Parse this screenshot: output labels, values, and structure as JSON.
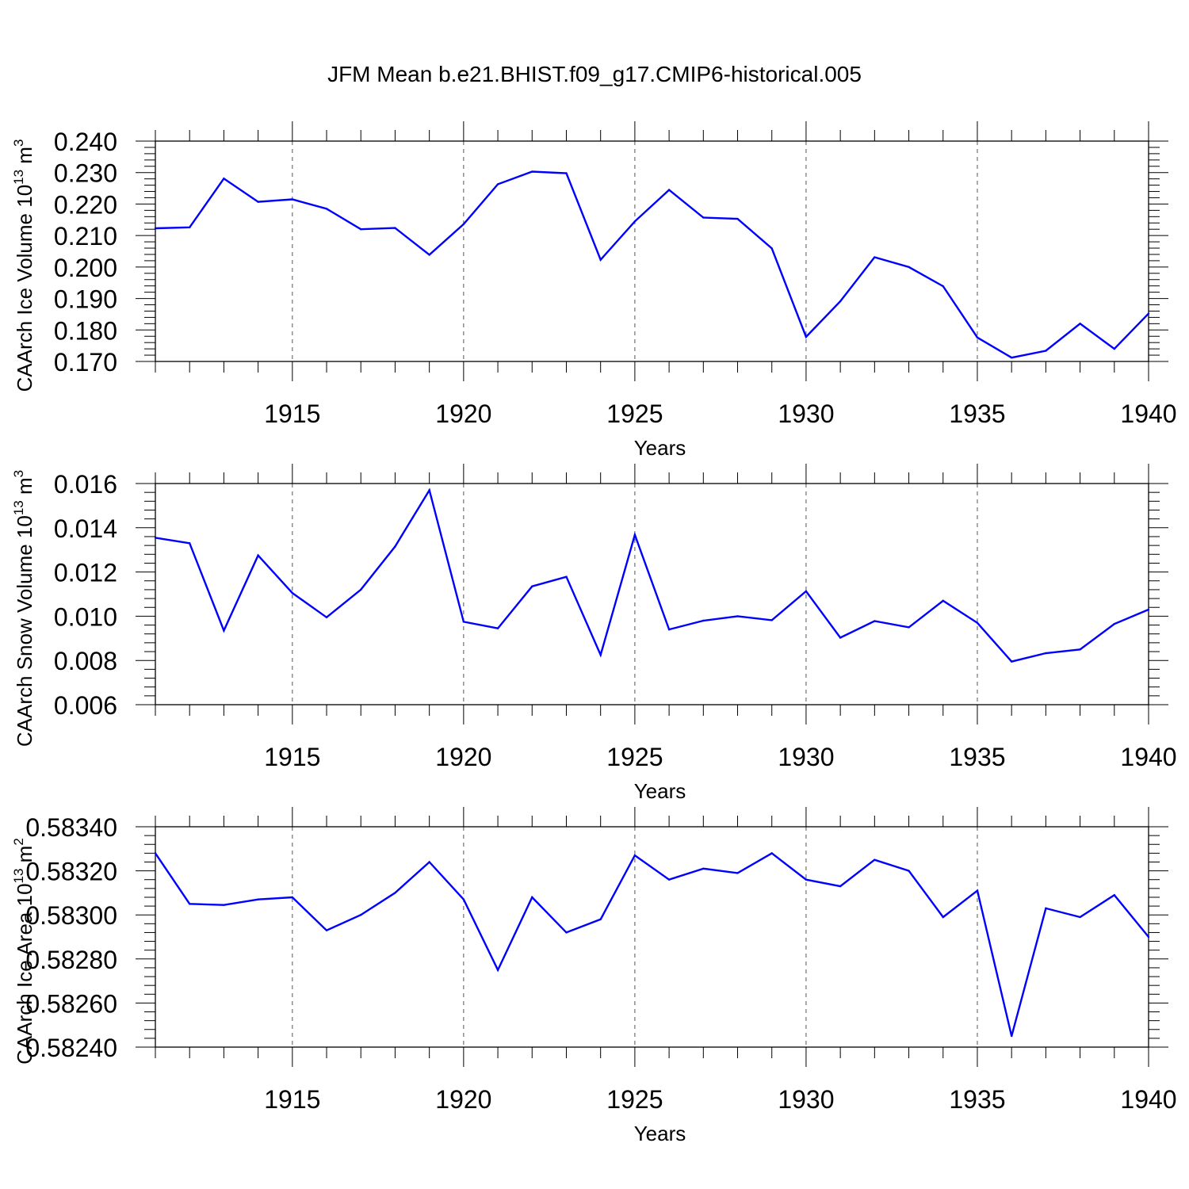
{
  "title": "JFM Mean b.e21.BHIST.f09_g17.CMIP6-historical.005",
  "colors": {
    "line": "#0000ff",
    "axis": "#000000",
    "grid": "#555555"
  },
  "chart_data": [
    {
      "type": "line",
      "xlabel": "Years",
      "ylabel_main": "CAArch Ice Volume 10",
      "ylabel_exp1": "13",
      "ylabel_unit": " m",
      "ylabel_exp2": "3",
      "xlim": [
        1911,
        1940
      ],
      "ylim": [
        0.17,
        0.24
      ],
      "xticks": [
        "1915",
        "1920",
        "1925",
        "1930",
        "1935",
        "1940"
      ],
      "yticks": [
        0.17,
        0.18,
        0.19,
        0.2,
        0.21,
        0.22,
        0.23,
        0.24
      ],
      "ytick_labels": [
        "0.170",
        "0.180",
        "0.190",
        "0.200",
        "0.210",
        "0.220",
        "0.230",
        "0.240"
      ],
      "x": [
        1911,
        1912,
        1913,
        1914,
        1915,
        1916,
        1917,
        1918,
        1919,
        1920,
        1921,
        1922,
        1923,
        1924,
        1925,
        1926,
        1927,
        1928,
        1929,
        1930,
        1931,
        1932,
        1933,
        1934,
        1935,
        1936,
        1937,
        1938,
        1939,
        1940
      ],
      "values": [
        0.2123,
        0.2126,
        0.2281,
        0.2207,
        0.2215,
        0.2185,
        0.212,
        0.2124,
        0.2039,
        0.2136,
        0.2263,
        0.2303,
        0.2298,
        0.2023,
        0.2145,
        0.2245,
        0.2157,
        0.2153,
        0.2059,
        0.1778,
        0.1891,
        0.2031,
        0.2,
        0.1939,
        0.1776,
        0.1712,
        0.1734,
        0.182,
        0.174,
        0.1852
      ]
    },
    {
      "type": "line",
      "xlabel": "Years",
      "ylabel_main": "CAArch Snow Volume 10",
      "ylabel_exp1": "13",
      "ylabel_unit": " m",
      "ylabel_exp2": "3",
      "xlim": [
        1911,
        1940
      ],
      "ylim": [
        0.006,
        0.016
      ],
      "xticks": [
        "1915",
        "1920",
        "1925",
        "1930",
        "1935",
        "1940"
      ],
      "yticks": [
        0.006,
        0.008,
        0.01,
        0.012,
        0.014,
        0.016
      ],
      "ytick_labels": [
        "0.006",
        "0.008",
        "0.010",
        "0.012",
        "0.014",
        "0.016"
      ],
      "x": [
        1911,
        1912,
        1913,
        1914,
        1915,
        1916,
        1917,
        1918,
        1919,
        1920,
        1921,
        1922,
        1923,
        1924,
        1925,
        1926,
        1927,
        1928,
        1929,
        1930,
        1931,
        1932,
        1933,
        1934,
        1935,
        1936,
        1937,
        1938,
        1939,
        1940
      ],
      "values": [
        0.01355,
        0.0133,
        0.00935,
        0.01275,
        0.01105,
        0.00995,
        0.0112,
        0.01315,
        0.0157,
        0.00975,
        0.00945,
        0.01135,
        0.01178,
        0.00825,
        0.01368,
        0.0094,
        0.0098,
        0.01,
        0.00982,
        0.01113,
        0.00903,
        0.00978,
        0.0095,
        0.0107,
        0.0097,
        0.00795,
        0.00833,
        0.0085,
        0.00965,
        0.0103
      ]
    },
    {
      "type": "line",
      "xlabel": "Years",
      "ylabel_main": "CAArch Ice Area 10",
      "ylabel_exp1": "13",
      "ylabel_unit": " m",
      "ylabel_exp2": "2",
      "xlim": [
        1911,
        1940
      ],
      "ylim": [
        0.5824,
        0.5834
      ],
      "xticks": [
        "1915",
        "1920",
        "1925",
        "1930",
        "1935",
        "1940"
      ],
      "yticks": [
        0.5824,
        0.5826,
        0.5828,
        0.583,
        0.5832,
        0.5834
      ],
      "ytick_labels": [
        "0.58240",
        "0.58260",
        "0.58280",
        "0.58300",
        "0.58320",
        "0.58340"
      ],
      "x": [
        1911,
        1912,
        1913,
        1914,
        1915,
        1916,
        1917,
        1918,
        1919,
        1920,
        1921,
        1922,
        1923,
        1924,
        1925,
        1926,
        1927,
        1928,
        1929,
        1930,
        1931,
        1932,
        1933,
        1934,
        1935,
        1936,
        1937,
        1938,
        1939,
        1940
      ],
      "values": [
        0.58328,
        0.58305,
        0.583045,
        0.58307,
        0.58308,
        0.58293,
        0.583,
        0.5831,
        0.58324,
        0.58307,
        0.58275,
        0.58308,
        0.58292,
        0.58298,
        0.58327,
        0.58316,
        0.58321,
        0.58319,
        0.58328,
        0.58316,
        0.58313,
        0.58325,
        0.5832,
        0.58299,
        0.58311,
        0.58245,
        0.58303,
        0.58299,
        0.58309,
        0.5829
      ]
    }
  ]
}
